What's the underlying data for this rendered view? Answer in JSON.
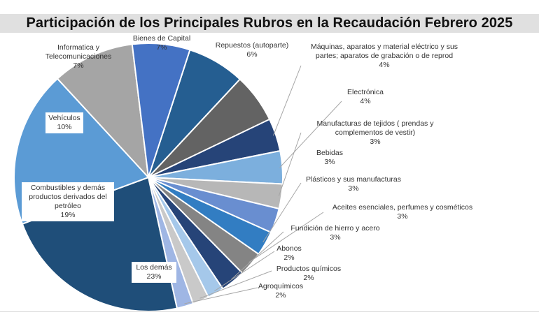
{
  "chart_data": {
    "type": "pie",
    "title": "Participación de los Principales Rubros en la Recaudación Febrero 2025",
    "slices": [
      {
        "label": "Bienes de Capital",
        "value": 7,
        "pct": "7%",
        "color": "#255e91"
      },
      {
        "label": "Repuestos (autoparte)",
        "value": 6,
        "pct": "6%",
        "color": "#636363"
      },
      {
        "label": "Máquinas, aparatos y material eléctrico y sus partes; aparatos de grabación o de reprod",
        "value": 4,
        "pct": "4%",
        "color": "#264478"
      },
      {
        "label": "Electrónica",
        "value": 4,
        "pct": "4%",
        "color": "#7cafdd"
      },
      {
        "label": "Manufacturas de tejidos ( prendas y complementos de vestir)",
        "value": 3,
        "pct": "3%",
        "color": "#b7b7b7"
      },
      {
        "label": "Bebidas",
        "value": 3,
        "pct": "3%",
        "color": "#698ed0"
      },
      {
        "label": "Plásticos y sus manufacturas",
        "value": 3,
        "pct": "3%",
        "color": "#327dc2"
      },
      {
        "label": "Aceites esenciales, perfumes y cosméticos",
        "value": 3,
        "pct": "3%",
        "color": "#848484"
      },
      {
        "label": "Fundición de hierro y acero",
        "value": 3,
        "pct": "3%",
        "color": "#264478"
      },
      {
        "label": "Abonos",
        "value": 2,
        "pct": "2%",
        "color": "#a5c8ea"
      },
      {
        "label": "Productos químicos",
        "value": 2,
        "pct": "2%",
        "color": "#c9c9c9"
      },
      {
        "label": "Agroquímicos",
        "value": 2,
        "pct": "2%",
        "color": "#9fb6e4"
      },
      {
        "label": "Los demás",
        "value": 23,
        "pct": "23%",
        "color": "#1f4e79"
      },
      {
        "label": "Combustibles y demás productos derivados del petróleo",
        "value": 19,
        "pct": "19%",
        "color": "#5b9bd5"
      },
      {
        "label": "Vehículos",
        "value": 10,
        "pct": "10%",
        "color": "#a5a5a5"
      },
      {
        "label": "Informatica y Telecomunicaciones",
        "value": 7,
        "pct": "7%",
        "color": "#4472c4"
      }
    ]
  }
}
